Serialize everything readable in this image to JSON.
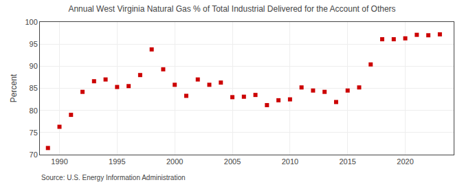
{
  "chart_data": {
    "type": "scatter",
    "title": "Annual West Virginia Natural Gas % of Total Industrial Delivered for the Account of Others",
    "ylabel": "Percent",
    "annotations": [
      "Source: U.S. Energy Information Administration"
    ],
    "x": [
      1989,
      1990,
      1991,
      1992,
      1993,
      1994,
      1995,
      1996,
      1997,
      1998,
      1999,
      2000,
      2001,
      2002,
      2003,
      2004,
      2005,
      2006,
      2007,
      2008,
      2009,
      2010,
      2011,
      2012,
      2013,
      2014,
      2015,
      2016,
      2017,
      2018,
      2019,
      2020,
      2021,
      2022,
      2023
    ],
    "values": [
      71.5,
      76.3,
      79.0,
      84.2,
      86.6,
      87.0,
      85.3,
      85.5,
      88.0,
      93.8,
      89.3,
      85.8,
      83.3,
      87.0,
      85.8,
      86.3,
      83.0,
      83.1,
      83.5,
      81.2,
      82.3,
      82.5,
      85.2,
      84.5,
      84.2,
      81.9,
      84.5,
      85.2,
      90.4,
      96.1,
      96.1,
      96.3,
      97.1,
      97.0,
      97.2
    ],
    "color": "#cc0000",
    "marker": "square",
    "xlim": [
      1988.3,
      2024.2
    ],
    "ylim": [
      70,
      100
    ],
    "xticks": [
      1990,
      1995,
      2000,
      2005,
      2010,
      2015,
      2020
    ],
    "yticks": [
      70,
      75,
      80,
      85,
      90,
      95,
      100
    ],
    "grid": true
  }
}
